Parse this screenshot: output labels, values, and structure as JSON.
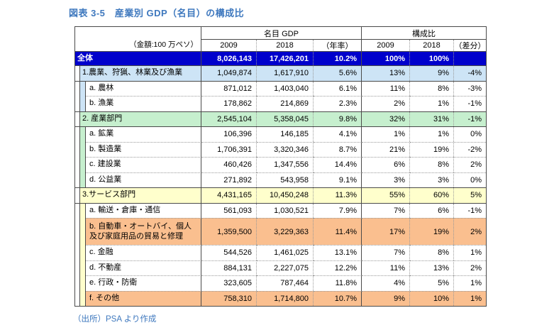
{
  "title": "図表 3-5　産業別 GDP（名目）の構成比",
  "source_note": "（出所）PSA より作成",
  "colors": {
    "title_blue": "#3E78BE",
    "total_row_bg": "#0000CC",
    "agriculture_section_bg": "#CDE4F6",
    "industry_section_bg": "#C6EFCE",
    "service_section_bg": "#FFFFCC",
    "highlight_row_bg": "#FABF8F"
  },
  "table": {
    "unit_note": "（金額:100 万ペソ）",
    "groups": {
      "gdp": "名目 GDP",
      "share": "構成比"
    },
    "headers": {
      "gdp_2009": "2009",
      "gdp_2018": "2018",
      "rate": "（年率）",
      "share_2009": "2009",
      "share_2018": "2018",
      "diff": "（差分）"
    },
    "rows": [
      {
        "label": "全体",
        "level": "total",
        "values": [
          "8,026,143",
          "17,426,201",
          "10.2%",
          "100%",
          "100%",
          ""
        ]
      },
      {
        "label": "1.農業、狩猟、林業及び漁業",
        "level": "category",
        "values": [
          "1,049,874",
          "1,617,910",
          "5.6%",
          "13%",
          "9%",
          "-4%"
        ]
      },
      {
        "label": "a. 農林",
        "level": "sub",
        "values": [
          "871,012",
          "1,403,040",
          "6.1%",
          "11%",
          "8%",
          "-3%"
        ]
      },
      {
        "label": "b. 漁業",
        "level": "sub",
        "values": [
          "178,862",
          "214,869",
          "2.3%",
          "2%",
          "1%",
          "-1%"
        ]
      },
      {
        "label": "2. 産業部門",
        "level": "category",
        "values": [
          "2,545,104",
          "5,358,045",
          "9.8%",
          "32%",
          "31%",
          "-1%"
        ]
      },
      {
        "label": "a. 鉱業",
        "level": "sub",
        "values": [
          "106,396",
          "146,185",
          "4.1%",
          "1%",
          "1%",
          "0%"
        ]
      },
      {
        "label": "b. 製造業",
        "level": "sub",
        "values": [
          "1,706,391",
          "3,320,346",
          "8.7%",
          "21%",
          "19%",
          "-2%"
        ]
      },
      {
        "label": "c. 建設業",
        "level": "sub",
        "values": [
          "460,426",
          "1,347,556",
          "14.4%",
          "6%",
          "8%",
          "2%"
        ]
      },
      {
        "label": "d. 公益業",
        "level": "sub",
        "values": [
          "271,892",
          "543,958",
          "9.1%",
          "3%",
          "3%",
          "0%"
        ]
      },
      {
        "label": "3.サービス部門",
        "level": "category",
        "values": [
          "4,431,165",
          "10,450,248",
          "11.3%",
          "55%",
          "60%",
          "5%"
        ]
      },
      {
        "label": "a. 輸送・倉庫・通信",
        "level": "sub",
        "values": [
          "561,093",
          "1,030,521",
          "7.9%",
          "7%",
          "6%",
          "-1%"
        ]
      },
      {
        "label": "b. 自動車・オートバイ、個人\n及び家庭用品の貿易と修理",
        "level": "sub",
        "highlight": true,
        "values": [
          "1,359,500",
          "3,229,363",
          "11.4%",
          "17%",
          "19%",
          "2%"
        ]
      },
      {
        "label": "c. 金融",
        "level": "sub",
        "values": [
          "544,526",
          "1,461,025",
          "13.1%",
          "7%",
          "8%",
          "1%"
        ]
      },
      {
        "label": "d. 不動産",
        "level": "sub",
        "values": [
          "884,131",
          "2,227,075",
          "12.2%",
          "11%",
          "13%",
          "2%"
        ]
      },
      {
        "label": "e. 行政・防衛",
        "level": "sub",
        "values": [
          "323,605",
          "787,464",
          "11.8%",
          "4%",
          "5%",
          "1%"
        ]
      },
      {
        "label": "f. その他",
        "level": "sub",
        "highlight": true,
        "values": [
          "758,310",
          "1,714,800",
          "10.7%",
          "9%",
          "10%",
          "1%"
        ]
      }
    ]
  }
}
